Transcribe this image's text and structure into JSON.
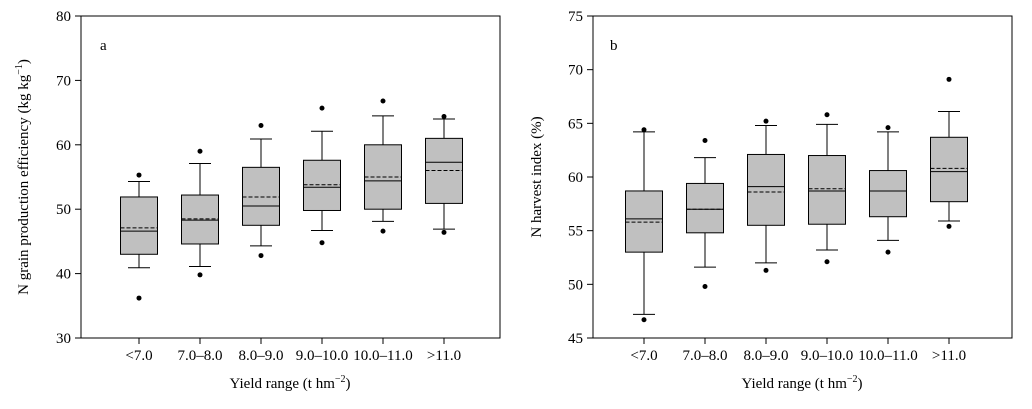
{
  "chart_data": [
    {
      "type": "box",
      "panel_label": "a",
      "ylabel_main": "N grain production efficiency (kg kg",
      "ylabel_sup": "−1",
      "ylabel_end": ")",
      "xlabel_main": "Yield range (t hm",
      "xlabel_sup": "−2",
      "xlabel_end": ")",
      "ylim": [
        30,
        80
      ],
      "yticks": [
        30,
        40,
        50,
        60,
        70,
        80
      ],
      "categories": [
        "<7.0",
        "7.0–8.0",
        "8.0–9.0",
        "9.0–10.0",
        "10.0–11.0",
        ">11.0"
      ],
      "boxes": [
        {
          "q1": 43.0,
          "median": 46.6,
          "mean": 47.1,
          "q3": 51.9,
          "whisker_low": 40.9,
          "whisker_high": 54.3,
          "outliers": [
            36.2,
            55.3
          ]
        },
        {
          "q1": 44.6,
          "median": 48.3,
          "mean": 48.5,
          "q3": 52.2,
          "whisker_low": 41.1,
          "whisker_high": 57.1,
          "outliers": [
            39.8,
            59.0
          ]
        },
        {
          "q1": 47.5,
          "median": 50.5,
          "mean": 51.9,
          "q3": 56.5,
          "whisker_low": 44.3,
          "whisker_high": 60.9,
          "outliers": [
            42.8,
            63.0
          ]
        },
        {
          "q1": 49.8,
          "median": 53.4,
          "mean": 53.8,
          "q3": 57.6,
          "whisker_low": 46.7,
          "whisker_high": 62.1,
          "outliers": [
            44.8,
            65.7
          ]
        },
        {
          "q1": 50.0,
          "median": 54.4,
          "mean": 55.0,
          "q3": 60.0,
          "whisker_low": 48.1,
          "whisker_high": 64.5,
          "outliers": [
            46.6,
            66.8
          ]
        },
        {
          "q1": 50.9,
          "median": 57.3,
          "mean": 56.0,
          "q3": 61.0,
          "whisker_low": 46.9,
          "whisker_high": 64.0,
          "outliers": [
            46.4,
            64.4
          ]
        }
      ]
    },
    {
      "type": "box",
      "panel_label": "b",
      "ylabel_main": "N harvest index (%)",
      "ylabel_sup": "",
      "ylabel_end": "",
      "xlabel_main": "Yield range (t hm",
      "xlabel_sup": "−2",
      "xlabel_end": ")",
      "ylim": [
        45,
        75
      ],
      "yticks": [
        45,
        50,
        55,
        60,
        65,
        70,
        75
      ],
      "categories": [
        "<7.0",
        "7.0–8.0",
        "8.0–9.0",
        "9.0–10.0",
        "10.0–11.0",
        ">11.0"
      ],
      "boxes": [
        {
          "q1": 53.0,
          "median": 56.1,
          "mean": 55.8,
          "q3": 58.7,
          "whisker_low": 47.2,
          "whisker_high": 64.2,
          "outliers": [
            46.7,
            64.4
          ]
        },
        {
          "q1": 54.8,
          "median": 57.0,
          "mean": 57.0,
          "q3": 59.4,
          "whisker_low": 51.6,
          "whisker_high": 61.8,
          "outliers": [
            49.8,
            63.4
          ]
        },
        {
          "q1": 55.5,
          "median": 59.1,
          "mean": 58.6,
          "q3": 62.1,
          "whisker_low": 52.0,
          "whisker_high": 64.8,
          "outliers": [
            51.3,
            65.2
          ]
        },
        {
          "q1": 55.6,
          "median": 58.7,
          "mean": 58.9,
          "q3": 62.0,
          "whisker_low": 53.2,
          "whisker_high": 64.9,
          "outliers": [
            52.1,
            65.8
          ]
        },
        {
          "q1": 56.3,
          "median": 58.7,
          "mean": 58.7,
          "q3": 60.6,
          "whisker_low": 54.1,
          "whisker_high": 64.2,
          "outliers": [
            53.0,
            64.6
          ]
        },
        {
          "q1": 57.7,
          "median": 60.5,
          "mean": 60.8,
          "q3": 63.7,
          "whisker_low": 55.9,
          "whisker_high": 66.1,
          "outliers": [
            55.4,
            69.1
          ]
        }
      ]
    }
  ],
  "colors": {
    "box_fill": "#c0c0c0",
    "stroke": "#000000"
  }
}
